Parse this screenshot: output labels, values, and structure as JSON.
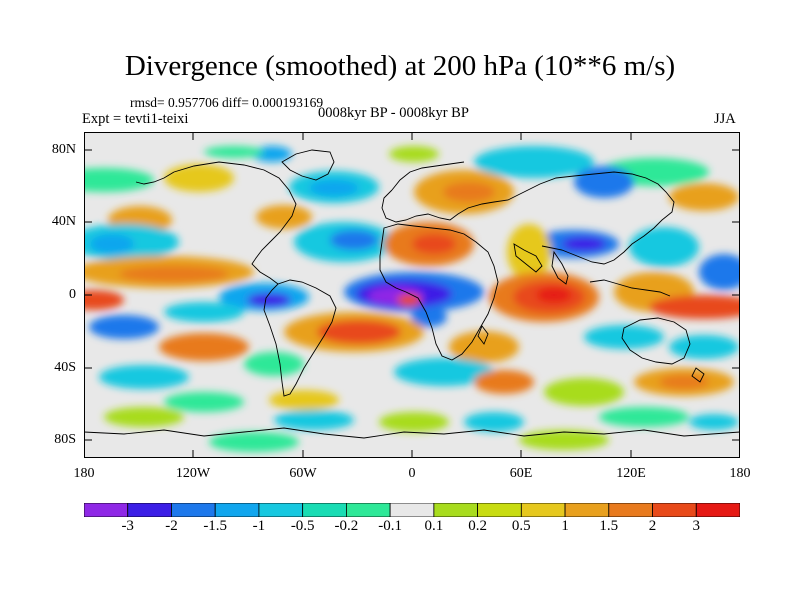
{
  "title": "Divergence (smoothed) at 200 hPa (10**6 m/s)",
  "stats": "rmsd= 0.957706 diff= 0.000193169",
  "period": "0008kyr BP - 0008kyr BP",
  "experiment": "Expt = tevti1-teixi",
  "season": "JJA",
  "lat_labels": [
    "80N",
    "40N",
    "0",
    "40S",
    "80S"
  ],
  "lon_labels": [
    "180",
    "120W",
    "60W",
    "0",
    "60E",
    "120E",
    "180"
  ],
  "colorbar": {
    "colors": [
      "#8f28e6",
      "#3c1fe6",
      "#1e78eb",
      "#11a6ee",
      "#17c8e0",
      "#1adcb4",
      "#2ee898",
      "#e8e8e8",
      "#a8dc1e",
      "#c8dc12",
      "#e6c81e",
      "#e8a01e",
      "#e87a1e",
      "#e84a1a",
      "#e61a14"
    ],
    "labels": [
      "-3",
      "-2",
      "-1.5",
      "-1",
      "-0.5",
      "-0.2",
      "-0.1",
      "0.1",
      "0.2",
      "0.5",
      "1",
      "1.5",
      "2",
      "3"
    ]
  }
}
